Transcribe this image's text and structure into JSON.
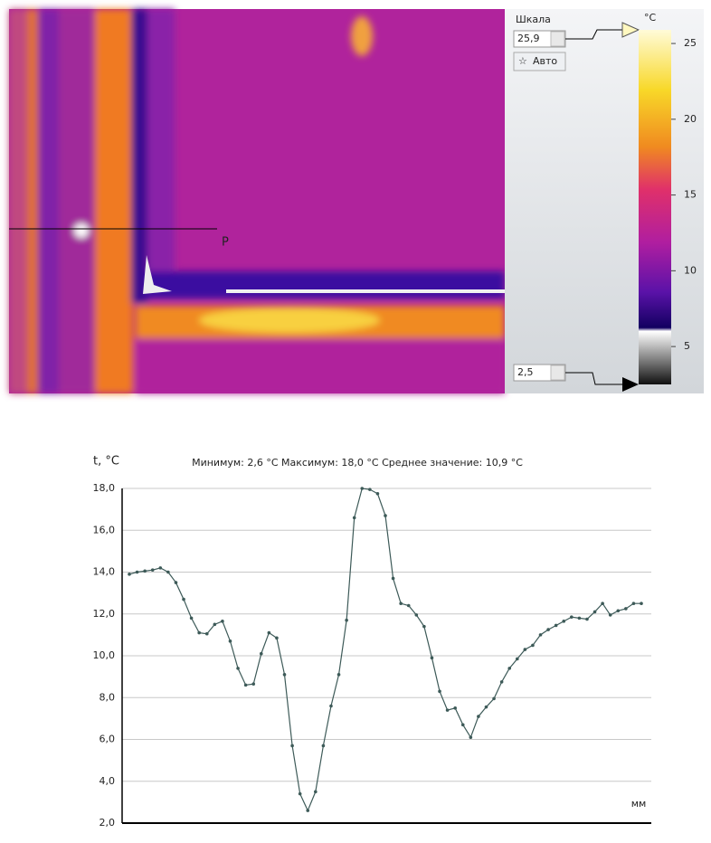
{
  "thermal": {
    "profile_label": "P"
  },
  "scale": {
    "label": "Шкала",
    "max": {
      "value": 25.9,
      "label": "25,9"
    },
    "min": {
      "value": 2.5,
      "label": "2,5"
    },
    "auto": "Авто"
  },
  "colorbar": {
    "unit": "°C",
    "ticks": [
      5,
      10,
      15,
      20,
      25
    ]
  },
  "chart_data": {
    "type": "line",
    "title": "Минимум: 2,6 °C Максимум: 18,0 °C Среднее значение: 10,9 °C",
    "y_label": "t, °C",
    "x_label": "мм",
    "series": [
      {
        "name": "P",
        "color": "#3d5a58",
        "values": [
          13.9,
          14.0,
          14.05,
          14.1,
          14.2,
          14.0,
          13.5,
          12.7,
          11.8,
          11.1,
          11.05,
          11.5,
          11.65,
          10.7,
          9.4,
          8.6,
          8.65,
          10.1,
          11.1,
          10.85,
          9.1,
          5.7,
          3.4,
          2.6,
          3.5,
          5.7,
          7.6,
          9.1,
          11.7,
          16.6,
          18.0,
          17.95,
          17.75,
          16.7,
          13.7,
          12.5,
          12.4,
          11.95,
          11.4,
          9.9,
          8.3,
          7.4,
          7.5,
          6.7,
          6.1,
          7.1,
          7.55,
          7.95,
          8.75,
          9.4,
          9.85,
          10.3,
          10.5,
          11.0,
          11.25,
          11.45,
          11.65,
          11.85,
          11.8,
          11.75,
          12.1,
          12.5,
          11.95,
          12.15,
          12.25,
          12.5,
          12.5
        ]
      }
    ],
    "ylim": [
      2,
      18
    ],
    "yticks": [
      {
        "value": 2,
        "label": "2,0"
      },
      {
        "value": 4,
        "label": "4,0"
      },
      {
        "value": 6,
        "label": "6,0"
      },
      {
        "value": 8,
        "label": "8,0"
      },
      {
        "value": 10,
        "label": "10,0"
      },
      {
        "value": 12,
        "label": "12,0"
      },
      {
        "value": 14,
        "label": "14,0"
      },
      {
        "value": 16,
        "label": "16,0"
      },
      {
        "value": 18,
        "label": "18,0"
      }
    ],
    "grid": true
  }
}
